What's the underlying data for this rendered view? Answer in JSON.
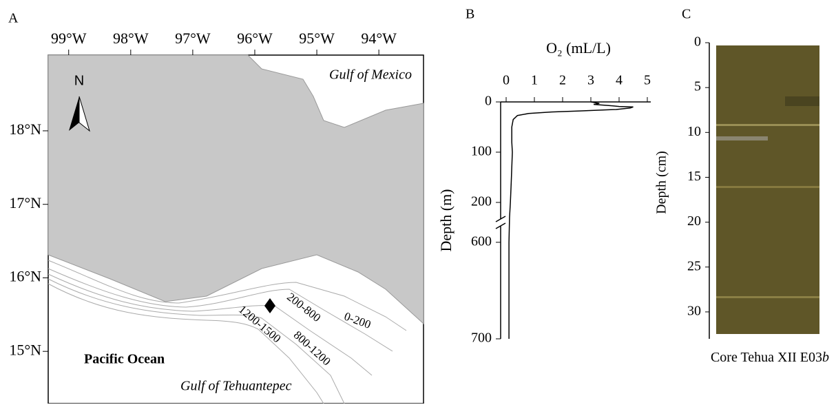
{
  "panel_labels": [
    "A",
    "B",
    "C"
  ],
  "map": {
    "xlim": [
      -99.33,
      -93.28
    ],
    "ylim": [
      14.29,
      19.03
    ],
    "xticks": [
      {
        "value": -99,
        "label": "99°W"
      },
      {
        "value": -98,
        "label": "98°W"
      },
      {
        "value": -97,
        "label": "97°W"
      },
      {
        "value": -96,
        "label": "96°W"
      },
      {
        "value": -95,
        "label": "95°W"
      },
      {
        "value": -94,
        "label": "94°W"
      }
    ],
    "yticks": [
      {
        "value": 18,
        "label": "18°N"
      },
      {
        "value": 17,
        "label": "17°N"
      },
      {
        "value": 16,
        "label": "16°N"
      },
      {
        "value": 15,
        "label": "15°N"
      }
    ],
    "north": "N",
    "labels": [
      "Gulf of Mexico",
      "Pacific Ocean",
      "Gulf of Tehuantepec"
    ],
    "contour_labels": [
      "0-200",
      "200-800",
      "800-1200",
      "1200-1500"
    ]
  },
  "chart_data": {
    "type": "line",
    "x_label": "O₂ (mL/L)",
    "y_label": "Depth (m)",
    "xlim": [
      0,
      5
    ],
    "xticks": [
      0,
      1,
      2,
      3,
      4,
      5
    ],
    "y_segments": [
      {
        "ylim": [
          0,
          233
        ],
        "yticks": [
          0,
          100,
          200
        ]
      },
      {
        "ylim": [
          583,
          700
        ],
        "yticks": [
          600,
          700
        ]
      }
    ],
    "series": [
      {
        "color": "#000000",
        "depth": [
          0,
          3,
          5,
          7,
          9,
          10,
          12,
          15,
          18,
          20,
          23,
          27,
          35,
          50,
          80,
          100,
          130,
          160,
          200,
          230,
          600,
          700
        ],
        "values": [
          3.0,
          3.3,
          3.1,
          3.6,
          4.0,
          4.5,
          4.4,
          3.9,
          2.6,
          1.6,
          0.8,
          0.4,
          0.25,
          0.2,
          0.2,
          0.22,
          0.2,
          0.18,
          0.15,
          0.12,
          0.1,
          0.1
        ]
      }
    ]
  },
  "core": {
    "y_label": "Depth (cm)",
    "ylim": [
      0,
      33
    ],
    "yticks": [
      0,
      5,
      10,
      15,
      20,
      25,
      30
    ],
    "caption": [
      "Core Tehua XII E03",
      "b"
    ]
  }
}
